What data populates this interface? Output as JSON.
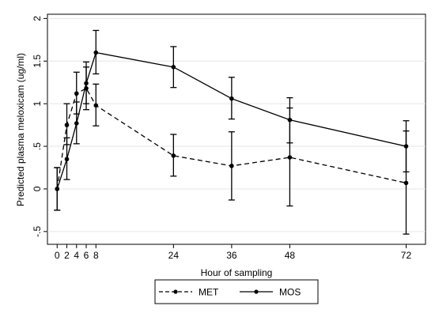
{
  "chart_data": {
    "type": "line",
    "ylabel": "Predicted plasma meloxicam (ug/ml)",
    "xlabel": "Hour of sampling",
    "x_ticks": [
      0,
      2,
      4,
      6,
      8,
      24,
      36,
      48,
      72
    ],
    "y_ticks": [
      -0.5,
      0,
      0.5,
      1,
      1.5,
      2
    ],
    "y_tick_labels": [
      "-.5",
      "0",
      ".5",
      "1",
      "1.5",
      "2"
    ],
    "xlim": [
      -2,
      76
    ],
    "ylim": [
      -0.65,
      2.05
    ],
    "grid": "horizontal",
    "legend_position": "bottom",
    "series": [
      {
        "name": "MET",
        "line_style": "dashed",
        "points": [
          {
            "x": 0,
            "y": 0.0,
            "lo": -0.25,
            "hi": 0.25
          },
          {
            "x": 2,
            "y": 0.75,
            "lo": 0.52,
            "hi": 1.0
          },
          {
            "x": 4,
            "y": 1.12,
            "lo": 0.88,
            "hi": 1.37
          },
          {
            "x": 6,
            "y": 1.18,
            "lo": 0.93,
            "hi": 1.43
          },
          {
            "x": 8,
            "y": 0.98,
            "lo": 0.74,
            "hi": 1.23
          },
          {
            "x": 24,
            "y": 0.39,
            "lo": 0.15,
            "hi": 0.64
          },
          {
            "x": 36,
            "y": 0.27,
            "lo": -0.13,
            "hi": 0.67
          },
          {
            "x": 48,
            "y": 0.37,
            "lo": -0.2,
            "hi": 0.95
          },
          {
            "x": 72,
            "y": 0.07,
            "lo": -0.53,
            "hi": 0.68
          }
        ]
      },
      {
        "name": "MOS",
        "line_style": "solid",
        "points": [
          {
            "x": 0,
            "y": 0.0,
            "lo": -0.25,
            "hi": 0.25
          },
          {
            "x": 2,
            "y": 0.35,
            "lo": 0.11,
            "hi": 0.6
          },
          {
            "x": 4,
            "y": 0.77,
            "lo": 0.53,
            "hi": 1.02
          },
          {
            "x": 6,
            "y": 1.24,
            "lo": 1.0,
            "hi": 1.49
          },
          {
            "x": 8,
            "y": 1.6,
            "lo": 1.35,
            "hi": 1.86
          },
          {
            "x": 24,
            "y": 1.43,
            "lo": 1.19,
            "hi": 1.67
          },
          {
            "x": 36,
            "y": 1.06,
            "lo": 0.82,
            "hi": 1.31
          },
          {
            "x": 48,
            "y": 0.81,
            "lo": 0.54,
            "hi": 1.07
          },
          {
            "x": 72,
            "y": 0.5,
            "lo": 0.2,
            "hi": 0.8
          }
        ]
      }
    ]
  }
}
